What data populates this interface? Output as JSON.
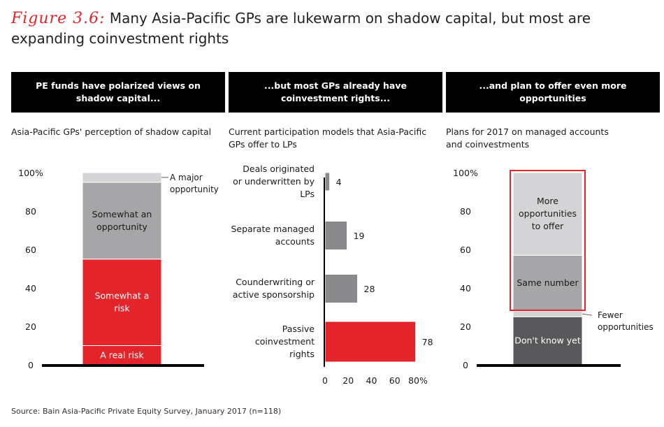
{
  "title": {
    "figure_label": "Figure 3.6:",
    "text": "Many Asia-Pacific GPs are lukewarm on shadow capital, but most are expanding coinvestment rights"
  },
  "colors": {
    "red": "#e3242b",
    "light_gray": "#d4d4d6",
    "mid_gray": "#a6a6a9",
    "med_gray": "#8a8a8d",
    "dark_gray": "#58585a",
    "highlight_border": "#e3242b"
  },
  "panels": [
    {
      "header": "PE funds have polarized views on shadow capital...",
      "subtitle": "Asia-Pacific GPs' perception of shadow capital"
    },
    {
      "header": "...but most GPs already have coinvestment rights...",
      "subtitle": "Current participation models that Asia-Pacific GPs offer to LPs"
    },
    {
      "header": "...and plan to offer even more opportunities",
      "subtitle": "Plans for 2017 on managed accounts and coinvestments"
    }
  ],
  "chart_data": [
    {
      "type": "bar",
      "stacked": true,
      "ylim": [
        0,
        100
      ],
      "yticks": [
        "0",
        "20",
        "40",
        "60",
        "80",
        "100%"
      ],
      "segments": [
        {
          "name": "A real risk",
          "value": 10,
          "color": "#e3242b",
          "label_color": "#ffffff"
        },
        {
          "name": "Somewhat a risk",
          "value": 45,
          "color": "#e3242b",
          "label_color": "#ffffff"
        },
        {
          "name": "Somewhat an opportunity",
          "value": 40,
          "color": "#a6a6a9",
          "label_color": "#1a1a1a"
        },
        {
          "name": "A major opportunity",
          "value": 5,
          "color": "#d4d4d6",
          "label_color": "#1a1a1a",
          "label_outside": true
        }
      ]
    },
    {
      "type": "bar",
      "orientation": "horizontal",
      "xlim": [
        0,
        80
      ],
      "xticks": [
        "0",
        "20",
        "40",
        "60",
        "80%"
      ],
      "categories": [
        "Deals originated or underwritten by LPs",
        "Separate managed accounts",
        "Counderwriting or active sponsorship",
        "Passive coinvestment rights"
      ],
      "values": [
        4,
        19,
        28,
        78
      ],
      "colors": [
        "#8a8a8d",
        "#8a8a8d",
        "#8a8a8d",
        "#e3242b"
      ]
    },
    {
      "type": "bar",
      "stacked": true,
      "ylim": [
        0,
        100
      ],
      "yticks": [
        "0",
        "20",
        "40",
        "60",
        "80",
        "100%"
      ],
      "segments": [
        {
          "name": "Don't know yet",
          "value": 25,
          "color": "#58585a",
          "label_color": "#ffffff"
        },
        {
          "name": "Fewer opportunities",
          "value": 3,
          "color": "#d4d4d6",
          "label_color": "#1a1a1a",
          "label_outside": true
        },
        {
          "name": "Same number",
          "value": 29,
          "color": "#a6a6a9",
          "label_color": "#1a1a1a"
        },
        {
          "name": "More opportunities to offer",
          "value": 43,
          "color": "#d4d4d6",
          "label_color": "#1a1a1a"
        }
      ],
      "highlight": "Same number + More opportunities to offer"
    }
  ],
  "source": "Source: Bain Asia-Pacific Private Equity Survey, January 2017 (n=118)"
}
